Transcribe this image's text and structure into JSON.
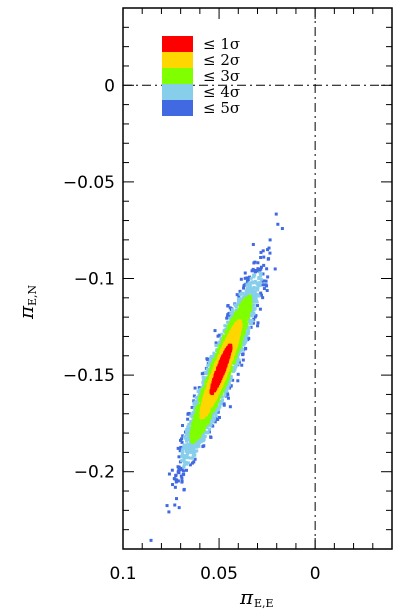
{
  "chart_data": {
    "type": "scatter",
    "title": "",
    "xlabel": {
      "symbol": "π",
      "subscript": "E,E"
    },
    "ylabel": {
      "symbol": "π",
      "subscript": "E,N"
    },
    "xlim": [
      0.1,
      -0.04
    ],
    "ylim": [
      -0.24,
      0.04
    ],
    "x_reversed": true,
    "x_ticks": [
      {
        "value": 0.1,
        "label": "0.1"
      },
      {
        "value": 0.05,
        "label": "0.05"
      },
      {
        "value": 0,
        "label": "0"
      }
    ],
    "y_ticks": [
      {
        "value": 0,
        "label": "0"
      },
      {
        "value": -0.05,
        "label": "−0.05"
      },
      {
        "value": -0.1,
        "label": "−0.1"
      },
      {
        "value": -0.15,
        "label": "−0.15"
      },
      {
        "value": -0.2,
        "label": "−0.2"
      }
    ],
    "reference_lines": {
      "x": 0,
      "y": 0,
      "style": "dash-dot"
    },
    "distribution": {
      "center": [
        0.049,
        -0.147
      ],
      "x_extent": [
        0.08,
        0.018
      ],
      "y_extent": [
        -0.222,
        -0.075
      ],
      "correlation": -0.93
    },
    "legend": {
      "position": "top-left",
      "entries": [
        {
          "label": "≤ 1σ",
          "color": "#ff0000"
        },
        {
          "label": "≤ 2σ",
          "color": "#ffd700"
        },
        {
          "label": "≤ 3σ",
          "color": "#7fff00"
        },
        {
          "label": "≤ 4σ",
          "color": "#87ceeb"
        },
        {
          "label": "≤ 5σ",
          "color": "#4169e1"
        }
      ]
    }
  }
}
